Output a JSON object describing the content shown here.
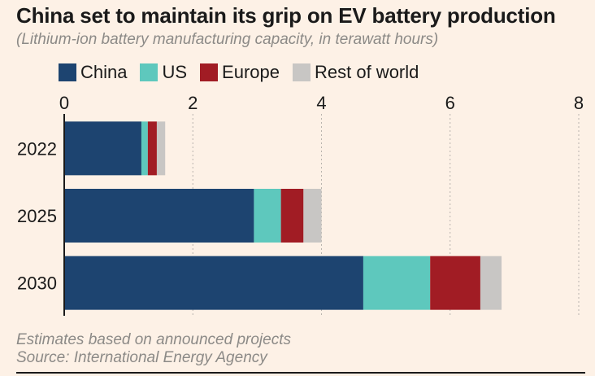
{
  "chart_data": {
    "type": "bar",
    "orientation": "horizontal",
    "stacked": true,
    "title": "China set to maintain its grip on EV battery production",
    "subtitle": "(Lithium-ion battery manufacturing capacity, in terawatt hours)",
    "categories": [
      "2022",
      "2025",
      "2030"
    ],
    "series": [
      {
        "name": "China",
        "color": "#1d4470",
        "values": [
          1.2,
          2.95,
          4.65
        ]
      },
      {
        "name": "US",
        "color": "#5ec8bd",
        "values": [
          0.1,
          0.42,
          1.04
        ]
      },
      {
        "name": "Europe",
        "color": "#a11c24",
        "values": [
          0.14,
          0.35,
          0.78
        ]
      },
      {
        "name": "Rest of world",
        "color": "#c8c6c4",
        "values": [
          0.13,
          0.28,
          0.33
        ]
      }
    ],
    "xlim": [
      0,
      8
    ],
    "x_ticks": [
      "0",
      "2",
      "4",
      "6",
      "8"
    ],
    "grid": true,
    "legend_position": "top-left",
    "note": "Estimates based on announced projects",
    "source": "Source: International Energy Agency"
  }
}
